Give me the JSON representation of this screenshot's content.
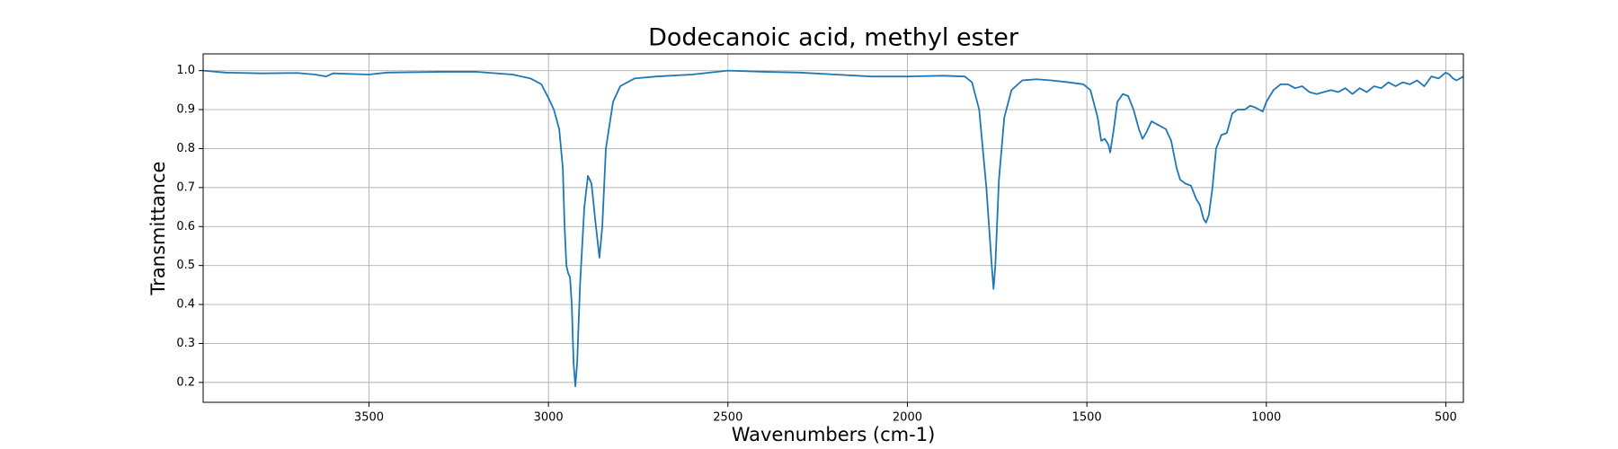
{
  "chart_data": {
    "type": "line",
    "title": "Dodecanoic acid, methyl ester",
    "x_label": "Wavenumbers (cm-1)",
    "y_label": "Transmittance",
    "color": "#1f77b4",
    "grid": true,
    "xlim": [
      3962,
      451
    ],
    "ylim": [
      0.149,
      1.043
    ],
    "xticks": [
      3500,
      3000,
      2500,
      2000,
      1500,
      1000,
      500
    ],
    "yticks": [
      0.2,
      0.3,
      0.4,
      0.5,
      0.6,
      0.7,
      0.8,
      0.9,
      {
        "value": 1.0,
        "label": "1.0"
      }
    ],
    "x": [
      3962,
      3900,
      3800,
      3700,
      3650,
      3620,
      3600,
      3500,
      3450,
      3300,
      3200,
      3100,
      3050,
      3020,
      3000,
      2985,
      2970,
      2960,
      2955,
      2950,
      2945,
      2940,
      2935,
      2930,
      2925,
      2920,
      2912,
      2900,
      2890,
      2880,
      2870,
      2858,
      2850,
      2840,
      2820,
      2800,
      2760,
      2700,
      2600,
      2500,
      2400,
      2300,
      2200,
      2100,
      2000,
      1900,
      1840,
      1820,
      1800,
      1780,
      1765,
      1760,
      1755,
      1745,
      1730,
      1710,
      1680,
      1640,
      1600,
      1550,
      1510,
      1490,
      1470,
      1460,
      1450,
      1440,
      1435,
      1425,
      1415,
      1400,
      1385,
      1370,
      1355,
      1345,
      1335,
      1320,
      1300,
      1280,
      1265,
      1250,
      1240,
      1225,
      1210,
      1195,
      1185,
      1175,
      1168,
      1160,
      1150,
      1140,
      1125,
      1110,
      1095,
      1080,
      1060,
      1045,
      1030,
      1010,
      1000,
      980,
      960,
      940,
      920,
      900,
      880,
      860,
      840,
      820,
      800,
      780,
      760,
      740,
      720,
      700,
      680,
      660,
      640,
      620,
      600,
      580,
      560,
      540,
      520,
      500,
      490,
      480,
      470,
      451
    ],
    "y": [
      1.0,
      0.995,
      0.993,
      0.994,
      0.99,
      0.985,
      0.993,
      0.99,
      0.995,
      0.997,
      0.997,
      0.99,
      0.98,
      0.965,
      0.93,
      0.9,
      0.85,
      0.75,
      0.6,
      0.5,
      0.48,
      0.47,
      0.4,
      0.25,
      0.19,
      0.25,
      0.45,
      0.65,
      0.73,
      0.71,
      0.62,
      0.52,
      0.6,
      0.8,
      0.92,
      0.96,
      0.98,
      0.985,
      0.99,
      1.0,
      0.997,
      0.995,
      0.99,
      0.985,
      0.985,
      0.987,
      0.985,
      0.97,
      0.9,
      0.7,
      0.5,
      0.44,
      0.5,
      0.72,
      0.88,
      0.95,
      0.975,
      0.978,
      0.975,
      0.97,
      0.965,
      0.95,
      0.88,
      0.82,
      0.825,
      0.81,
      0.79,
      0.85,
      0.92,
      0.94,
      0.935,
      0.9,
      0.85,
      0.825,
      0.84,
      0.87,
      0.86,
      0.85,
      0.82,
      0.75,
      0.72,
      0.71,
      0.705,
      0.67,
      0.655,
      0.62,
      0.61,
      0.63,
      0.7,
      0.8,
      0.835,
      0.84,
      0.89,
      0.9,
      0.9,
      0.91,
      0.905,
      0.895,
      0.92,
      0.95,
      0.965,
      0.965,
      0.955,
      0.96,
      0.945,
      0.94,
      0.945,
      0.95,
      0.945,
      0.955,
      0.94,
      0.955,
      0.945,
      0.96,
      0.955,
      0.97,
      0.96,
      0.97,
      0.965,
      0.975,
      0.96,
      0.985,
      0.98,
      0.995,
      0.99,
      0.98,
      0.975,
      0.985
    ]
  }
}
